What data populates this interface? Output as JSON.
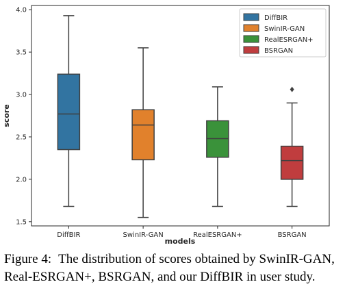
{
  "chart_data": {
    "type": "box",
    "xlabel": "models",
    "ylabel": "score",
    "ylim": [
      1.45,
      4.05
    ],
    "yticks": [
      1.5,
      2.0,
      2.5,
      3.0,
      3.5,
      4.0
    ],
    "ytick_labels": [
      "1.5",
      "2.0",
      "2.5",
      "3.0",
      "3.5",
      "4.0"
    ],
    "categories": [
      "DiffBIR",
      "SwinIR-GAN",
      "RealESRGAN+",
      "BSRGAN"
    ],
    "legend_position": "top-right",
    "grid": false,
    "series": [
      {
        "name": "DiffBIR",
        "color": "#3274a1",
        "whisker_low": 1.68,
        "q1": 2.35,
        "median": 2.77,
        "q3": 3.24,
        "whisker_high": 3.93,
        "outliers": []
      },
      {
        "name": "SwinIR-GAN",
        "color": "#e1812c",
        "whisker_low": 1.55,
        "q1": 2.23,
        "median": 2.64,
        "q3": 2.82,
        "whisker_high": 3.55,
        "outliers": []
      },
      {
        "name": "RealESRGAN+",
        "color": "#3a923a",
        "whisker_low": 1.68,
        "q1": 2.26,
        "median": 2.48,
        "q3": 2.69,
        "whisker_high": 3.09,
        "outliers": []
      },
      {
        "name": "BSRGAN",
        "color": "#c03d3e",
        "whisker_low": 1.68,
        "q1": 2.0,
        "median": 2.22,
        "q3": 2.39,
        "whisker_high": 2.9,
        "outliers": [
          3.06
        ]
      }
    ]
  },
  "caption": {
    "label": "Figure 4:",
    "text": "The distribution of scores obtained by SwinIR-GAN, Real-ESRGAN+, BSRGAN, and our DiffBIR in user study."
  }
}
